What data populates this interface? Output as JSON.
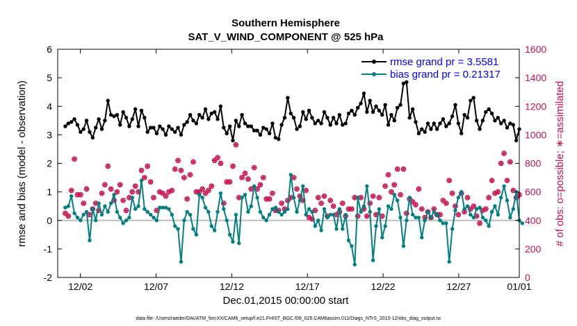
{
  "chart_data": {
    "type": "line",
    "title": "Southern Hemisphere",
    "subtitle": "SAT_V_WIND_COMPONENT @ 525 hPa",
    "xlabel": "Dec.01,2015 00:00:00 start",
    "ylabel": "rmse and bias (model - observation)",
    "y2label": "# of obs: o=possible; ∗=assimilated",
    "footnote": "data file: /Users/raeder/DAI/ATM_forcXX/CAM6_setup/f.e21.FHIST_BGC.f09_025.CAM6assim.011/Diags_NTrS_2015-12/obs_diag_output.nc",
    "xlim": [
      0.5,
      31.0
    ],
    "ylim": [
      -2,
      6
    ],
    "y2lim": [
      0,
      1600
    ],
    "xticks": [
      2,
      7,
      12,
      17,
      22,
      27,
      32
    ],
    "xtick_labels": [
      "12/02",
      "12/07",
      "12/12",
      "12/17",
      "12/22",
      "12/27",
      "01/01"
    ],
    "yticks": [
      "-2",
      "-1",
      "0",
      "1",
      "2",
      "3",
      "4",
      "5",
      "6"
    ],
    "y2ticks": [
      "0",
      "200",
      "400",
      "600",
      "800",
      "1000",
      "1200",
      "1400",
      "1600"
    ],
    "legend_location": "top-right",
    "grid": false,
    "colors": {
      "rmse": "#000000",
      "bias": "#008080",
      "obs": "#c8104f",
      "zero_line": "#bfbfbf"
    },
    "series": [
      {
        "name": "rmse grand pr = 3.5581",
        "axis": "left",
        "values": [
          3.3,
          3.4,
          3.45,
          3.55,
          3.35,
          3.1,
          3.2,
          3.5,
          3.1,
          2.9,
          3.25,
          3.55,
          3.2,
          3.5,
          4.2,
          3.7,
          3.65,
          3.7,
          3.35,
          3.8,
          3.6,
          3.3,
          3.55,
          3.9,
          3.3,
          3.85,
          3.6,
          3.1,
          3.25,
          3.25,
          3.05,
          3.3,
          3.2,
          3.0,
          3.3,
          3.2,
          3.1,
          3.25,
          3.0,
          3.35,
          3.45,
          3.7,
          3.5,
          3.4,
          3.7,
          3.6,
          3.9,
          3.55,
          3.75,
          3.8,
          3.55,
          4.0,
          3.25,
          3.05,
          3.3,
          2.8,
          3.5,
          3.3,
          3.7,
          3.4,
          3.3,
          3.3,
          3.15,
          3.15,
          3.0,
          3.25,
          3.2,
          3.05,
          3.4,
          2.9,
          2.85,
          3.35,
          3.6,
          4.3,
          3.75,
          3.6,
          3.2,
          3.3,
          3.8,
          3.55,
          3.85,
          3.6,
          3.4,
          3.5,
          3.4,
          3.8,
          3.6,
          3.35,
          3.6,
          3.4,
          3.7,
          3.35,
          3.4,
          3.75,
          3.85,
          3.7,
          3.95,
          4.1,
          4.45,
          3.8,
          4.2,
          3.8,
          4.0,
          3.85,
          3.7,
          4.05,
          3.35,
          3.7,
          3.5,
          3.95,
          4.05,
          4.8,
          4.85,
          3.6,
          3.9,
          3.45,
          3.05,
          3.2,
          3.1,
          3.4,
          3.2,
          3.4,
          3.2,
          3.4,
          3.55,
          3.3,
          3.4,
          3.65,
          4.05,
          3.4,
          3.05,
          3.7,
          3.6,
          4.2,
          4.3,
          3.5,
          3.2,
          3.5,
          3.8,
          3.9,
          3.75,
          3.5,
          3.6,
          3.4,
          3.5,
          3.25,
          3.4,
          3.35,
          2.8,
          3.2
        ]
      },
      {
        "name": "bias grand pr = 0.21317",
        "axis": "left",
        "values": [
          0.45,
          0.5,
          0.85,
          0.25,
          0.1,
          0.0,
          0.2,
          0.3,
          -0.7,
          0.4,
          0.0,
          0.6,
          0.2,
          0.5,
          0.3,
          0.6,
          0.9,
          0.3,
          0.1,
          -0.1,
          0.0,
          0.1,
          0.8,
          0.4,
          0.5,
          1.4,
          0.4,
          0.3,
          0.2,
          0.1,
          0.0,
          0.45,
          0.45,
          0.45,
          0.4,
          0.2,
          -0.2,
          -0.3,
          -1.45,
          0.0,
          0.3,
          0.2,
          -0.3,
          -0.5,
          0.9,
          0.8,
          0.45,
          0.3,
          -0.2,
          -0.35,
          0.3,
          0.95,
          0.4,
          0.0,
          -0.5,
          -0.75,
          0.2,
          -0.8,
          0.8,
          0.9,
          0.3,
          0.5,
          1.2,
          0.8,
          0.3,
          0.1,
          0.0,
          0.2,
          0.4,
          0.45,
          0.3,
          0.2,
          0.3,
          0.4,
          1.6,
          0.8,
          0.3,
          0.7,
          1.2,
          0.2,
          0.4,
          0.3,
          -0.2,
          0.0,
          -0.35,
          0.4,
          0.1,
          0.2,
          0.2,
          -0.3,
          0.4,
          -0.3,
          0.2,
          -0.7,
          -0.9,
          -1.55,
          0.8,
          0.3,
          0.5,
          1.2,
          0.3,
          -1.4,
          -0.2,
          0.4,
          -0.6,
          -0.2,
          0.5,
          0.4,
          0.9,
          0.7,
          0.1,
          -0.9,
          0.0,
          0.8,
          0.2,
          0.1,
          0.1,
          -0.6,
          0.0,
          0.3,
          0.1,
          0.3,
          0.2,
          0.0,
          -0.1,
          -0.1,
          -1.45,
          -0.3,
          0.35,
          0.8,
          1.0,
          0.4,
          0.5,
          0.2,
          0.1,
          0.4,
          0.45,
          0.1,
          0.0,
          -0.2,
          0.3,
          0.5,
          0.2,
          0.8,
          1.2,
          0.7,
          0.1,
          0.4,
          1.0,
          0.0,
          -0.1
        ]
      },
      {
        "name": "obs_possible",
        "axis": "right",
        "marker": "o",
        "values": [
          450,
          430,
          610,
          830,
          580,
          580,
          520,
          620,
          440,
          480,
          520,
          470,
          590,
          650,
          780,
          620,
          540,
          600,
          650,
          540,
          470,
          560,
          600,
          640,
          600,
          750,
          700,
          780,
          670,
          560,
          470,
          600,
          590,
          570,
          600,
          610,
          760,
          820,
          750,
          700,
          550,
          720,
          810,
          600,
          600,
          620,
          590,
          610,
          640,
          820,
          840,
          800,
          520,
          670,
          670,
          780,
          930,
          560,
          700,
          730,
          690,
          620,
          770,
          620,
          650,
          700,
          550,
          550,
          590,
          470,
          470,
          520,
          480,
          540,
          560,
          700,
          620,
          570,
          540,
          610,
          420,
          410,
          470,
          560,
          520,
          570,
          430,
          540,
          500,
          440,
          460,
          520,
          430,
          480,
          480,
          560,
          430,
          560,
          480,
          430,
          520,
          570,
          440,
          560,
          430,
          640,
          720,
          600,
          650,
          760,
          580,
          760,
          450,
          550,
          530,
          510,
          620,
          480,
          420,
          460,
          420,
          480,
          440,
          440,
          540,
          520,
          680,
          590,
          500,
          440,
          590,
          460,
          560,
          480,
          500,
          430,
          380,
          470,
          480,
          560,
          680,
          590,
          600,
          800,
          870,
          680,
          810,
          610,
          560,
          580
        ]
      },
      {
        "name": "obs_assimilated",
        "axis": "right",
        "marker": "*",
        "values": [
          450,
          430,
          610,
          830,
          580,
          580,
          520,
          620,
          440,
          480,
          520,
          470,
          590,
          650,
          780,
          620,
          540,
          600,
          650,
          540,
          470,
          560,
          600,
          640,
          600,
          750,
          700,
          780,
          670,
          560,
          470,
          600,
          590,
          570,
          600,
          610,
          760,
          820,
          750,
          700,
          550,
          720,
          810,
          600,
          600,
          620,
          590,
          610,
          640,
          820,
          840,
          800,
          520,
          670,
          670,
          780,
          930,
          560,
          700,
          730,
          690,
          620,
          770,
          620,
          650,
          700,
          550,
          550,
          590,
          470,
          470,
          520,
          480,
          540,
          560,
          700,
          620,
          570,
          540,
          610,
          420,
          410,
          470,
          560,
          520,
          570,
          430,
          540,
          500,
          440,
          460,
          520,
          430,
          480,
          480,
          560,
          430,
          560,
          480,
          430,
          520,
          570,
          440,
          560,
          430,
          640,
          720,
          600,
          650,
          760,
          580,
          760,
          450,
          550,
          530,
          510,
          620,
          480,
          420,
          460,
          420,
          480,
          440,
          440,
          540,
          520,
          680,
          590,
          500,
          440,
          590,
          460,
          560,
          480,
          500,
          430,
          380,
          470,
          480,
          560,
          680,
          590,
          600,
          800,
          870,
          680,
          810,
          610,
          560,
          580
        ]
      }
    ]
  }
}
